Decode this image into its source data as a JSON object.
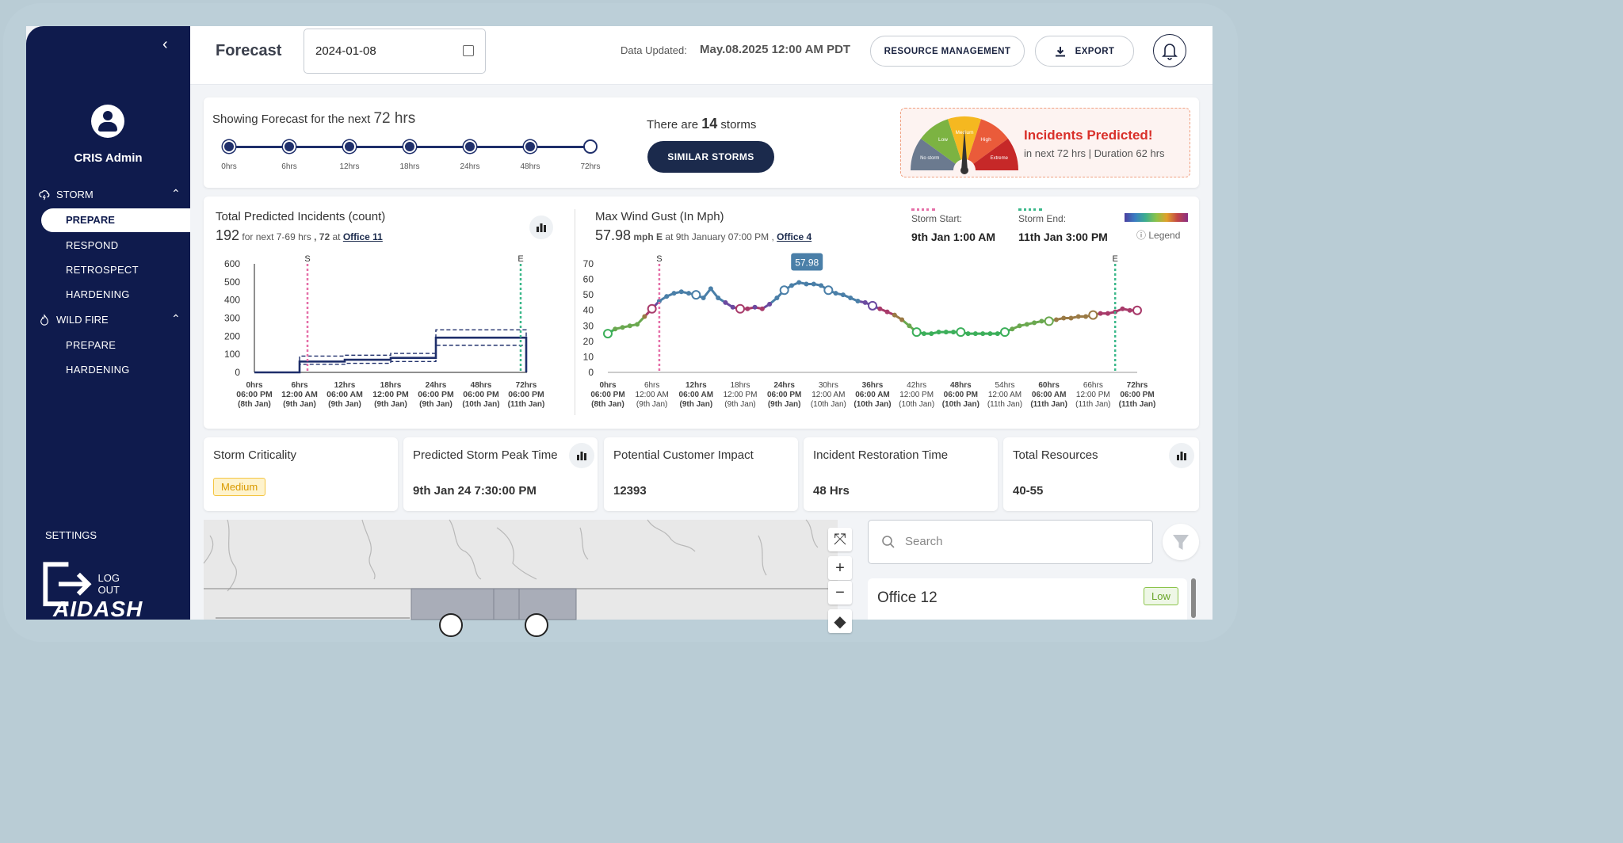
{
  "sidebar": {
    "user": "CRIS Admin",
    "sections": [
      {
        "label": "STORM",
        "items": [
          "PREPARE",
          "RESPOND",
          "RETROSPECT",
          "HARDENING"
        ]
      },
      {
        "label": "WILD FIRE",
        "items": [
          "PREPARE",
          "HARDENING"
        ]
      }
    ],
    "active": "PREPARE",
    "settings": "SETTINGS",
    "logout": "LOG OUT",
    "logo": "AIDASH"
  },
  "header": {
    "title": "Forecast",
    "date_value": "2024-01-08",
    "data_updated_label": "Data Updated:",
    "data_updated_value": "May.08.2025 12:00 AM PDT",
    "resource_btn": "RESOURCE MANAGEMENT",
    "export_btn": "EXPORT"
  },
  "forecast": {
    "prefix": "Showing Forecast for the next",
    "hours": "72 hrs",
    "steps": [
      "0hrs",
      "6hrs",
      "12hrs",
      "18hrs",
      "24hrs",
      "48hrs",
      "72hrs"
    ],
    "storms_prefix": "There are",
    "storms_count": "14",
    "storms_suffix": "storms",
    "similar_btn": "SIMILAR STORMS"
  },
  "incidents_predicted": {
    "title": "Incidents Predicted!",
    "subtitle": "in next 72 hrs | Duration 62 hrs",
    "gauge_labels": [
      "No storm",
      "Low",
      "Medium",
      "High",
      "Extreme"
    ],
    "gauge_colors": [
      "#6b7a8f",
      "#7cb342",
      "#f5b820",
      "#ea5b3a",
      "#c62828"
    ],
    "gauge_level": "Medium"
  },
  "incidents_chart": {
    "title": "Total Predicted Incidents (count)",
    "value": "192",
    "for_text": "for next 7-69 hrs",
    "peak": ", 72",
    "at_text": "at",
    "office": "Office 11"
  },
  "wind_chart": {
    "title": "Max Wind Gust (In Mph)",
    "value": "57.98",
    "unit": "mph E",
    "at_text": "at 9th January 07:00 PM ,",
    "office": "Office 4",
    "storm_start_label": "Storm Start:",
    "storm_start": "9th Jan 1:00 AM",
    "storm_end_label": "Storm End:",
    "storm_end": "11th Jan 3:00 PM",
    "legend": "Legend",
    "tooltip": "57.98"
  },
  "chart_data": [
    {
      "type": "line",
      "title": "Total Predicted Incidents (count)",
      "ylim": [
        0,
        600
      ],
      "yticks": [
        0,
        100,
        200,
        300,
        400,
        500,
        600
      ],
      "x_ticks": [
        [
          "0hrs",
          "06:00 PM",
          "(8th Jan)"
        ],
        [
          "6hrs",
          "12:00 AM",
          "(9th Jan)"
        ],
        [
          "12hrs",
          "06:00 AM",
          "(9th Jan)"
        ],
        [
          "18hrs",
          "12:00 PM",
          "(9th Jan)"
        ],
        [
          "24hrs",
          "06:00 PM",
          "(9th Jan)"
        ],
        [
          "48hrs",
          "06:00 PM",
          "(10th Jan)"
        ],
        [
          "72hrs",
          "06:00 PM",
          "(11th Jan)"
        ]
      ],
      "step_x": [
        0,
        6,
        6,
        12,
        12,
        18,
        18,
        24,
        24,
        48,
        60,
        72,
        72
      ],
      "series": [
        {
          "values": [
            0,
            0,
            60,
            60,
            70,
            70,
            80,
            80,
            192,
            192,
            192,
            192,
            0
          ]
        },
        {
          "values": [
            0,
            0,
            90,
            90,
            95,
            95,
            105,
            105,
            235,
            235,
            235,
            235,
            0
          ]
        },
        {
          "values": [
            0,
            0,
            45,
            45,
            50,
            50,
            60,
            60,
            150,
            150,
            150,
            150,
            0
          ]
        }
      ],
      "markers": [
        {
          "x": 7,
          "label": "S"
        },
        {
          "x": 69,
          "label": "E"
        }
      ]
    },
    {
      "type": "line",
      "title": "Max Wind Gust (In Mph)",
      "ylim": [
        0,
        70
      ],
      "yticks": [
        0,
        10,
        20,
        30,
        40,
        50,
        60,
        70
      ],
      "x_ticks": [
        [
          "0hrs",
          "06:00 PM",
          "(8th Jan)"
        ],
        [
          "6hrs",
          "12:00 AM",
          "(9th Jan)"
        ],
        [
          "12hrs",
          "06:00 AM",
          "(9th Jan)"
        ],
        [
          "18hrs",
          "12:00 PM",
          "(9th Jan)"
        ],
        [
          "24hrs",
          "06:00 PM",
          "(9th Jan)"
        ],
        [
          "30hrs",
          "12:00 AM",
          "(10th Jan)"
        ],
        [
          "36hrs",
          "06:00 AM",
          "(10th Jan)"
        ],
        [
          "42hrs",
          "12:00 PM",
          "(10th Jan)"
        ],
        [
          "48hrs",
          "06:00 PM",
          "(10th Jan)"
        ],
        [
          "54hrs",
          "12:00 AM",
          "(11th Jan)"
        ],
        [
          "60hrs",
          "06:00 AM",
          "(11th Jan)"
        ],
        [
          "66hrs",
          "12:00 PM",
          "(11th Jan)"
        ],
        [
          "72hrs",
          "06:00 PM",
          "(11th Jan)"
        ]
      ],
      "x": [
        0,
        1,
        2,
        3,
        4,
        5,
        6,
        7,
        8,
        9,
        10,
        11,
        12,
        13,
        14,
        15,
        16,
        17,
        18,
        19,
        20,
        21,
        22,
        23,
        24,
        25,
        26,
        27,
        28,
        29,
        30,
        31,
        32,
        33,
        34,
        35,
        36,
        37,
        38,
        39,
        40,
        41,
        42,
        43,
        44,
        45,
        46,
        47,
        48,
        49,
        50,
        51,
        52,
        53,
        54,
        55,
        56,
        57,
        58,
        59,
        60,
        61,
        62,
        63,
        64,
        65,
        66,
        67,
        68,
        69,
        70,
        71,
        72
      ],
      "values": [
        25,
        28,
        29,
        30,
        31,
        36,
        41,
        46,
        49,
        51,
        52,
        51,
        50,
        48,
        54,
        48,
        45,
        42,
        41,
        41,
        42,
        41,
        44,
        48,
        53,
        56,
        58,
        57,
        57,
        56,
        53,
        51,
        50,
        48,
        46,
        45,
        43,
        41,
        39,
        37,
        34,
        30,
        26,
        25,
        25,
        26,
        26,
        26,
        26,
        25,
        25,
        25,
        25,
        25,
        26,
        28,
        30,
        31,
        32,
        33,
        33,
        34,
        35,
        35,
        36,
        36,
        37,
        38,
        38,
        39,
        41,
        40,
        40
      ],
      "markers": [
        {
          "x": 7,
          "label": "S"
        },
        {
          "x": 69,
          "label": "E"
        }
      ]
    }
  ],
  "metrics": [
    {
      "title": "Storm Criticality",
      "badge": "Medium"
    },
    {
      "title": "Predicted Storm Peak Time",
      "value": "9th Jan 24 7:30:00 PM"
    },
    {
      "title": "Potential Customer Impact",
      "value": "12393"
    },
    {
      "title": "Incident Restoration Time",
      "value": "48 Hrs"
    },
    {
      "title": "Total Resources",
      "value": "40-55"
    }
  ],
  "map_panel": {
    "search_placeholder": "Search",
    "office_name": "Office 12",
    "office_badge": "Low"
  }
}
